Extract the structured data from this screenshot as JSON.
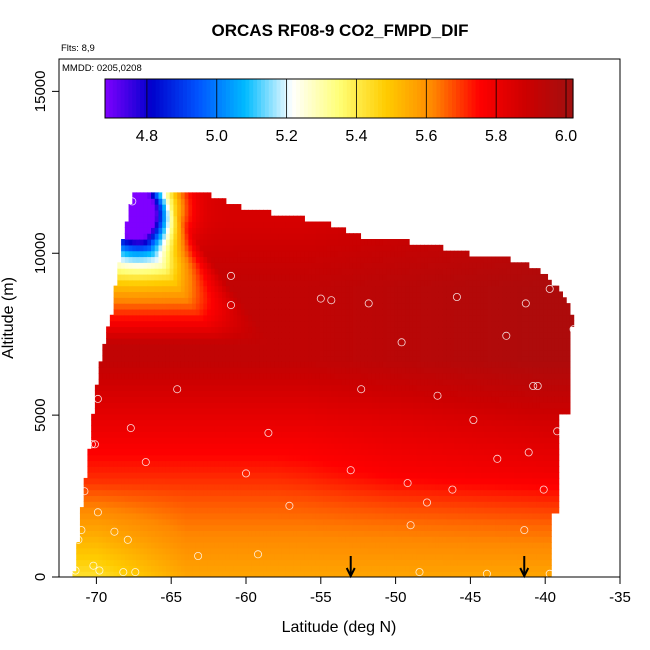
{
  "chart_data": {
    "type": "heatmap",
    "title": "ORCAS RF08-9 CO2_FMPD_DIF",
    "xlabel": "Latitude (deg N)",
    "ylabel": "Altitude (m)",
    "xlim": [
      -72.5,
      -35
    ],
    "ylim": [
      0,
      16000
    ],
    "x_ticks": [
      -70,
      -65,
      -60,
      -55,
      -50,
      -45,
      -40,
      -35
    ],
    "y_ticks": [
      0,
      5000,
      10000,
      15000
    ],
    "annotations": {
      "flights": "Flts: 8,9",
      "mmdd": "MMDD: 0205,0208"
    },
    "colorbar": {
      "range": [
        4.68,
        6.02
      ],
      "ticks": [
        4.8,
        5.0,
        5.2,
        5.4,
        5.6,
        5.8,
        6.0
      ],
      "tick_labels": [
        "4.8",
        "5.0",
        "5.2",
        "5.4",
        "5.6",
        "5.8",
        "6.0"
      ],
      "colors": [
        "#7f00ff",
        "#0000cc",
        "#0055ff",
        "#00bbff",
        "#ffffff",
        "#ffff77",
        "#ffcc00",
        "#ff8800",
        "#ff0000",
        "#cc0000",
        "#a01010"
      ]
    },
    "data_top_altitude": [
      [
        -71.5,
        0
      ],
      [
        -71.0,
        1900
      ],
      [
        -70.5,
        3800
      ],
      [
        -70.0,
        5800
      ],
      [
        -69.5,
        7100
      ],
      [
        -69.0,
        8000
      ],
      [
        -68.5,
        9600
      ],
      [
        -68.0,
        10800
      ],
      [
        -67.6,
        11700
      ],
      [
        -66.0,
        11800
      ],
      [
        -63.0,
        11800
      ],
      [
        -60.0,
        11300
      ],
      [
        -55.0,
        10900
      ],
      [
        -52.0,
        10400
      ],
      [
        -48.0,
        10200
      ],
      [
        -45.0,
        9900
      ],
      [
        -42.0,
        9700
      ],
      [
        -40.0,
        9300
      ],
      [
        -39.0,
        8900
      ],
      [
        -38.0,
        7800
      ],
      [
        -38.2,
        6500
      ],
      [
        -38.5,
        5000
      ],
      [
        -39.0,
        4000
      ],
      [
        -39.5,
        2000
      ],
      [
        -39.5,
        0
      ]
    ],
    "samples": [
      [
        -67.6,
        11600
      ],
      [
        -61.0,
        9300
      ],
      [
        -61.0,
        8400
      ],
      [
        -55.0,
        8600
      ],
      [
        -54.3,
        8550
      ],
      [
        -51.8,
        8450
      ],
      [
        -45.9,
        8650
      ],
      [
        -41.3,
        8450
      ],
      [
        -39.7,
        8900
      ],
      [
        -38.1,
        7650
      ],
      [
        -42.6,
        7450
      ],
      [
        -49.6,
        7250
      ],
      [
        -47.2,
        5600
      ],
      [
        -52.3,
        5800
      ],
      [
        -64.6,
        5800
      ],
      [
        -69.9,
        5500
      ],
      [
        -67.7,
        4600
      ],
      [
        -58.5,
        4450
      ],
      [
        -44.8,
        4850
      ],
      [
        -40.8,
        5900
      ],
      [
        -40.5,
        5900
      ],
      [
        -39.2,
        4500
      ],
      [
        -70.1,
        4100
      ],
      [
        -70.3,
        4100
      ],
      [
        -66.7,
        3550
      ],
      [
        -60.0,
        3200
      ],
      [
        -53.0,
        3300
      ],
      [
        -49.2,
        2900
      ],
      [
        -46.2,
        2700
      ],
      [
        -43.2,
        3650
      ],
      [
        -41.1,
        3850
      ],
      [
        -40.1,
        2700
      ],
      [
        -57.1,
        2200
      ],
      [
        -47.9,
        2300
      ],
      [
        -70.8,
        2650
      ],
      [
        -69.9,
        2000
      ],
      [
        -71.0,
        1450
      ],
      [
        -68.8,
        1400
      ],
      [
        -71.2,
        1150
      ],
      [
        -67.9,
        1150
      ],
      [
        -49.0,
        1600
      ],
      [
        -41.4,
        1450
      ],
      [
        -63.2,
        650
      ],
      [
        -59.2,
        700
      ],
      [
        -70.2,
        350
      ],
      [
        -71.4,
        200
      ],
      [
        -69.8,
        200
      ],
      [
        -68.2,
        150
      ],
      [
        -67.4,
        150
      ],
      [
        -48.4,
        150
      ],
      [
        -43.9,
        100
      ],
      [
        -39.7,
        100
      ]
    ],
    "markers": [
      {
        "lat": -53.0,
        "label": "arrow"
      },
      {
        "lat": -41.4,
        "label": "arrow"
      }
    ]
  }
}
